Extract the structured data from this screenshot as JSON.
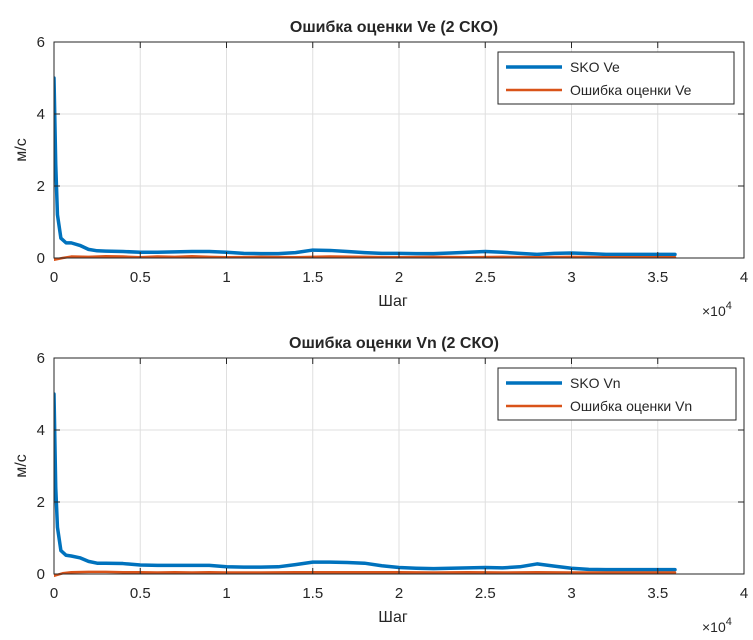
{
  "chart_data": [
    {
      "type": "line",
      "title": "Ошибка оценки Ve (2 СКО)",
      "xlabel": "Шаг",
      "ylabel": "м/с",
      "xlim": [
        0,
        40000
      ],
      "ylim": [
        0,
        6
      ],
      "x_ticks": [
        0,
        5000,
        10000,
        15000,
        20000,
        25000,
        30000,
        35000,
        40000
      ],
      "x_tick_labels": [
        "0",
        "0.5",
        "1",
        "1.5",
        "2",
        "2.5",
        "3",
        "3.5",
        "4"
      ],
      "y_ticks": [
        0,
        2,
        4,
        6
      ],
      "y_tick_labels": [
        "0",
        "2",
        "4",
        "6"
      ],
      "x_multiplier": {
        "base": "×10",
        "exponent": "4"
      },
      "grid": true,
      "legend_position": "top-right",
      "series": [
        {
          "name": "SKO Ve",
          "color": "#0072BD",
          "x": [
            0,
            100,
            200,
            400,
            700,
            1000,
            1500,
            2000,
            2500,
            3000,
            4000,
            5000,
            6000,
            7000,
            8000,
            9000,
            10000,
            11000,
            12000,
            13000,
            14000,
            15000,
            16000,
            17000,
            18000,
            19000,
            20000,
            21000,
            22000,
            23000,
            24000,
            25000,
            26000,
            27000,
            28000,
            29000,
            30000,
            31000,
            32000,
            33000,
            34000,
            35000,
            36000
          ],
          "y": [
            5.0,
            2.6,
            1.2,
            0.55,
            0.42,
            0.42,
            0.35,
            0.24,
            0.2,
            0.19,
            0.18,
            0.16,
            0.16,
            0.17,
            0.18,
            0.18,
            0.16,
            0.13,
            0.12,
            0.12,
            0.15,
            0.22,
            0.21,
            0.18,
            0.15,
            0.13,
            0.13,
            0.12,
            0.12,
            0.14,
            0.16,
            0.18,
            0.16,
            0.13,
            0.1,
            0.13,
            0.14,
            0.12,
            0.1,
            0.1,
            0.1,
            0.1,
            0.1
          ]
        },
        {
          "name": "Ошибка оценки Ve",
          "color": "#D95319",
          "x": [
            0,
            500,
            1000,
            2000,
            3000,
            4000,
            5000,
            6000,
            7000,
            8000,
            9000,
            10000,
            12000,
            14000,
            16000,
            18000,
            20000,
            22000,
            24000,
            26000,
            28000,
            30000,
            32000,
            34000,
            36000
          ],
          "y": [
            -0.05,
            0.0,
            0.04,
            0.03,
            0.05,
            0.04,
            0.02,
            0.04,
            0.03,
            0.05,
            0.03,
            0.02,
            0.03,
            0.02,
            0.04,
            0.03,
            0.02,
            0.03,
            0.02,
            0.03,
            0.02,
            0.03,
            0.02,
            0.02,
            0.02
          ]
        }
      ]
    },
    {
      "type": "line",
      "title": "Ошибка оценки Vn (2 СКО)",
      "xlabel": "Шаг",
      "ylabel": "м/с",
      "xlim": [
        0,
        40000
      ],
      "ylim": [
        0,
        6
      ],
      "x_ticks": [
        0,
        5000,
        10000,
        15000,
        20000,
        25000,
        30000,
        35000,
        40000
      ],
      "x_tick_labels": [
        "0",
        "0.5",
        "1",
        "1.5",
        "2",
        "2.5",
        "3",
        "3.5",
        "4"
      ],
      "y_ticks": [
        0,
        2,
        4,
        6
      ],
      "y_tick_labels": [
        "0",
        "2",
        "4",
        "6"
      ],
      "x_multiplier": {
        "base": "×10",
        "exponent": "4"
      },
      "grid": true,
      "legend_position": "top-right",
      "series": [
        {
          "name": "SKO Vn",
          "color": "#0072BD",
          "x": [
            0,
            100,
            200,
            400,
            700,
            1000,
            1500,
            2000,
            2500,
            3000,
            4000,
            5000,
            6000,
            7000,
            8000,
            9000,
            10000,
            11000,
            12000,
            13000,
            14000,
            15000,
            16000,
            17000,
            18000,
            19000,
            20000,
            21000,
            22000,
            23000,
            24000,
            25000,
            26000,
            27000,
            28000,
            29000,
            30000,
            31000,
            32000,
            33000,
            34000,
            35000,
            36000
          ],
          "y": [
            5.0,
            2.4,
            1.3,
            0.65,
            0.52,
            0.5,
            0.45,
            0.35,
            0.3,
            0.3,
            0.29,
            0.25,
            0.24,
            0.24,
            0.24,
            0.24,
            0.2,
            0.19,
            0.19,
            0.2,
            0.26,
            0.33,
            0.33,
            0.32,
            0.3,
            0.23,
            0.18,
            0.16,
            0.15,
            0.16,
            0.17,
            0.18,
            0.17,
            0.2,
            0.28,
            0.22,
            0.16,
            0.13,
            0.12,
            0.12,
            0.12,
            0.12,
            0.12
          ]
        },
        {
          "name": "Ошибка оценки Vn",
          "color": "#D95319",
          "x": [
            0,
            500,
            1000,
            2000,
            3000,
            4000,
            5000,
            6000,
            7000,
            8000,
            9000,
            10000,
            12000,
            14000,
            16000,
            18000,
            20000,
            22000,
            24000,
            26000,
            28000,
            30000,
            32000,
            34000,
            36000
          ],
          "y": [
            -0.05,
            0.02,
            0.05,
            0.06,
            0.06,
            0.05,
            0.05,
            0.04,
            0.05,
            0.04,
            0.05,
            0.04,
            0.04,
            0.05,
            0.05,
            0.05,
            0.05,
            0.04,
            0.05,
            0.04,
            0.05,
            0.04,
            0.04,
            0.04,
            0.04
          ]
        }
      ]
    }
  ]
}
